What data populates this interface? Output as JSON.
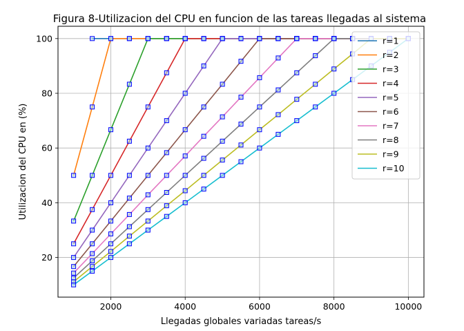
{
  "chart_data": {
    "type": "line",
    "title": "Figura 8-Utilizacion del CPU en funcion de las tareas llegadas al sistema",
    "xlabel": "Llegadas globales variadas tareas/s",
    "ylabel": "Utilizacion del CPU en (%)",
    "xlim": [
      580,
      10420
    ],
    "ylim": [
      5.5,
      104.5
    ],
    "xticks": [
      2000,
      4000,
      6000,
      8000,
      10000
    ],
    "yticks": [
      20,
      40,
      60,
      80,
      100
    ],
    "grid": true,
    "legend_position": "right",
    "marker": {
      "shape": "square",
      "edge_color": "#0000ff",
      "face_color": "#add8e6"
    },
    "x": [
      1000,
      1500,
      2000,
      2500,
      3000,
      3500,
      4000,
      4500,
      5000,
      5500,
      6000,
      6500,
      7000,
      7500,
      8000,
      8500,
      9000,
      9500,
      10000
    ],
    "series": [
      {
        "name": "r=1",
        "color": "#1f77b4",
        "values": [
          null,
          100,
          100,
          100,
          100,
          100,
          100,
          100,
          100,
          100,
          100,
          100,
          100,
          100,
          100,
          100,
          100,
          100,
          100
        ]
      },
      {
        "name": "r=2",
        "color": "#ff7f0e",
        "values": [
          50,
          75,
          100,
          100,
          100,
          100,
          100,
          100,
          100,
          100,
          100,
          100,
          100,
          100,
          100,
          100,
          100,
          100,
          100
        ]
      },
      {
        "name": "r=3",
        "color": "#2ca02c",
        "values": [
          33.3,
          50,
          66.7,
          83.3,
          100,
          100,
          100,
          100,
          100,
          100,
          100,
          100,
          100,
          100,
          100,
          100,
          100,
          100,
          100
        ]
      },
      {
        "name": "r=4",
        "color": "#d62728",
        "values": [
          25,
          37.5,
          50,
          62.5,
          75,
          87.5,
          100,
          100,
          100,
          100,
          100,
          100,
          100,
          100,
          100,
          100,
          100,
          100,
          100
        ]
      },
      {
        "name": "r=5",
        "color": "#9467bd",
        "values": [
          20,
          30,
          40,
          50,
          60,
          70,
          80,
          90,
          100,
          100,
          100,
          100,
          100,
          100,
          100,
          100,
          100,
          100,
          100
        ]
      },
      {
        "name": "r=6",
        "color": "#8c564b",
        "values": [
          16.7,
          25,
          33.3,
          41.7,
          50,
          58.3,
          66.7,
          75,
          83.3,
          91.7,
          100,
          100,
          100,
          100,
          100,
          100,
          100,
          100,
          100
        ]
      },
      {
        "name": "r=7",
        "color": "#e377c2",
        "values": [
          14.3,
          21.4,
          28.6,
          35.7,
          42.9,
          50,
          57.1,
          64.3,
          71.4,
          78.6,
          85.7,
          92.9,
          100,
          100,
          100,
          100,
          100,
          100,
          100
        ]
      },
      {
        "name": "r=8",
        "color": "#7f7f7f",
        "values": [
          12.5,
          18.75,
          25,
          31.25,
          37.5,
          43.75,
          50,
          56.25,
          62.5,
          68.75,
          75,
          81.25,
          87.5,
          93.75,
          100,
          100,
          100,
          100,
          100
        ]
      },
      {
        "name": "r=9",
        "color": "#bcbd22",
        "values": [
          11.1,
          16.7,
          22.2,
          27.8,
          33.3,
          38.9,
          44.4,
          50,
          55.6,
          61.1,
          66.7,
          72.2,
          77.8,
          83.3,
          88.9,
          94.4,
          100,
          100,
          100
        ]
      },
      {
        "name": "r=10",
        "color": "#17becf",
        "values": [
          10,
          15,
          20,
          25,
          30,
          35,
          40,
          45,
          50,
          55,
          60,
          65,
          70,
          75,
          80,
          85,
          90,
          95,
          100
        ]
      }
    ]
  }
}
